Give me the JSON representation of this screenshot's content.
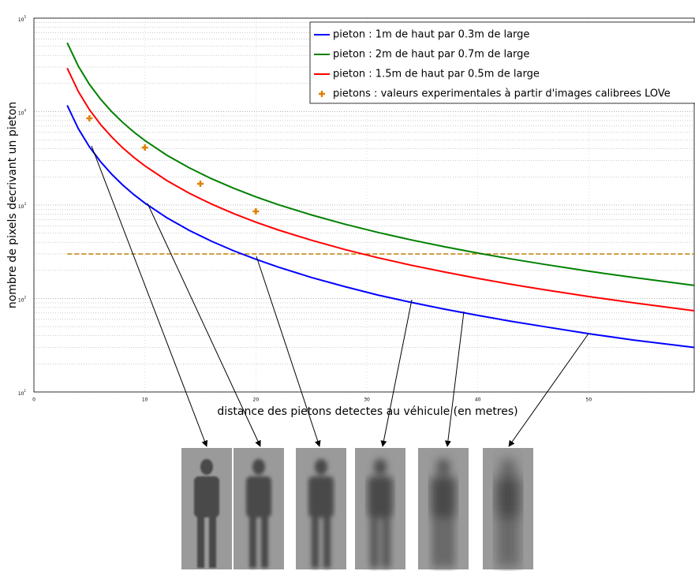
{
  "chart_data": {
    "type": "line",
    "xlabel": "distance des pietons detectes au véhicule (en metres)",
    "ylabel": "nombre de pixels decrivant un pieton",
    "log_y": true,
    "grid": true,
    "legend": "upper right",
    "xlim": [
      0,
      59.5
    ],
    "xticks": [
      0,
      10,
      20,
      30,
      40,
      50
    ],
    "ylim": [
      10,
      100000
    ],
    "yticks": [
      {
        "value": 10,
        "label": "10",
        "exponent": "1"
      },
      {
        "value": 100,
        "label": "10",
        "exponent": "2"
      },
      {
        "value": 1000,
        "label": "10",
        "exponent": "3"
      },
      {
        "value": 10000,
        "label": "10",
        "exponent": "4"
      },
      {
        "value": 100000,
        "label": "10",
        "exponent": "5"
      }
    ],
    "yminorticks": [
      20,
      30,
      40,
      50,
      60,
      70,
      80,
      90,
      200,
      300,
      400,
      500,
      600,
      700,
      800,
      900,
      2000,
      3000,
      4000,
      5000,
      6000,
      7000,
      8000,
      9000,
      20000,
      30000,
      40000,
      50000,
      60000,
      70000,
      80000,
      90000
    ],
    "x": [
      3,
      4,
      5,
      6,
      7,
      8,
      9,
      10,
      12,
      14,
      16,
      18,
      20,
      22,
      25,
      28,
      31,
      34,
      37,
      40,
      43,
      46,
      50,
      54,
      59.5
    ],
    "series": [
      {
        "name": "pieton : 1m de haut par 0.3m de large",
        "color": "#0000ff",
        "kind": "line",
        "values": [
          11667,
          6563,
          4200,
          2917,
          2143,
          1641,
          1296,
          1050,
          729,
          536,
          410,
          324,
          263,
          217,
          168,
          134,
          109,
          91,
          77,
          66,
          57,
          50,
          42,
          36,
          30
        ]
      },
      {
        "name": "pieton : 2m de haut par 0.7m de large",
        "color": "#008000",
        "kind": "line",
        "values": [
          54444,
          30625,
          19600,
          13611,
          10000,
          7656,
          6049,
          4900,
          3403,
          2500,
          1914,
          1512,
          1225,
          1012,
          784,
          625,
          510,
          424,
          358,
          306,
          265,
          232,
          196,
          168,
          138
        ]
      },
      {
        "name": "pieton : 1.5m de haut par 0.5m de large",
        "color": "#ff0000",
        "kind": "line",
        "values": [
          29167,
          16406,
          10500,
          7292,
          5357,
          4102,
          3241,
          2625,
          1823,
          1339,
          1025,
          810,
          656,
          542,
          420,
          335,
          273,
          227,
          192,
          164,
          142,
          124,
          105,
          90,
          74
        ]
      },
      {
        "name": "pietons : valeurs experimentales à partir d'images calibrees LOVe",
        "color": "#e08000",
        "kind": "scatter",
        "x": [
          5,
          10,
          15,
          20
        ],
        "values": [
          8470,
          4130,
          1690,
          855
        ]
      }
    ],
    "reference_line": {
      "value": 300,
      "color": "#c08000"
    }
  }
}
